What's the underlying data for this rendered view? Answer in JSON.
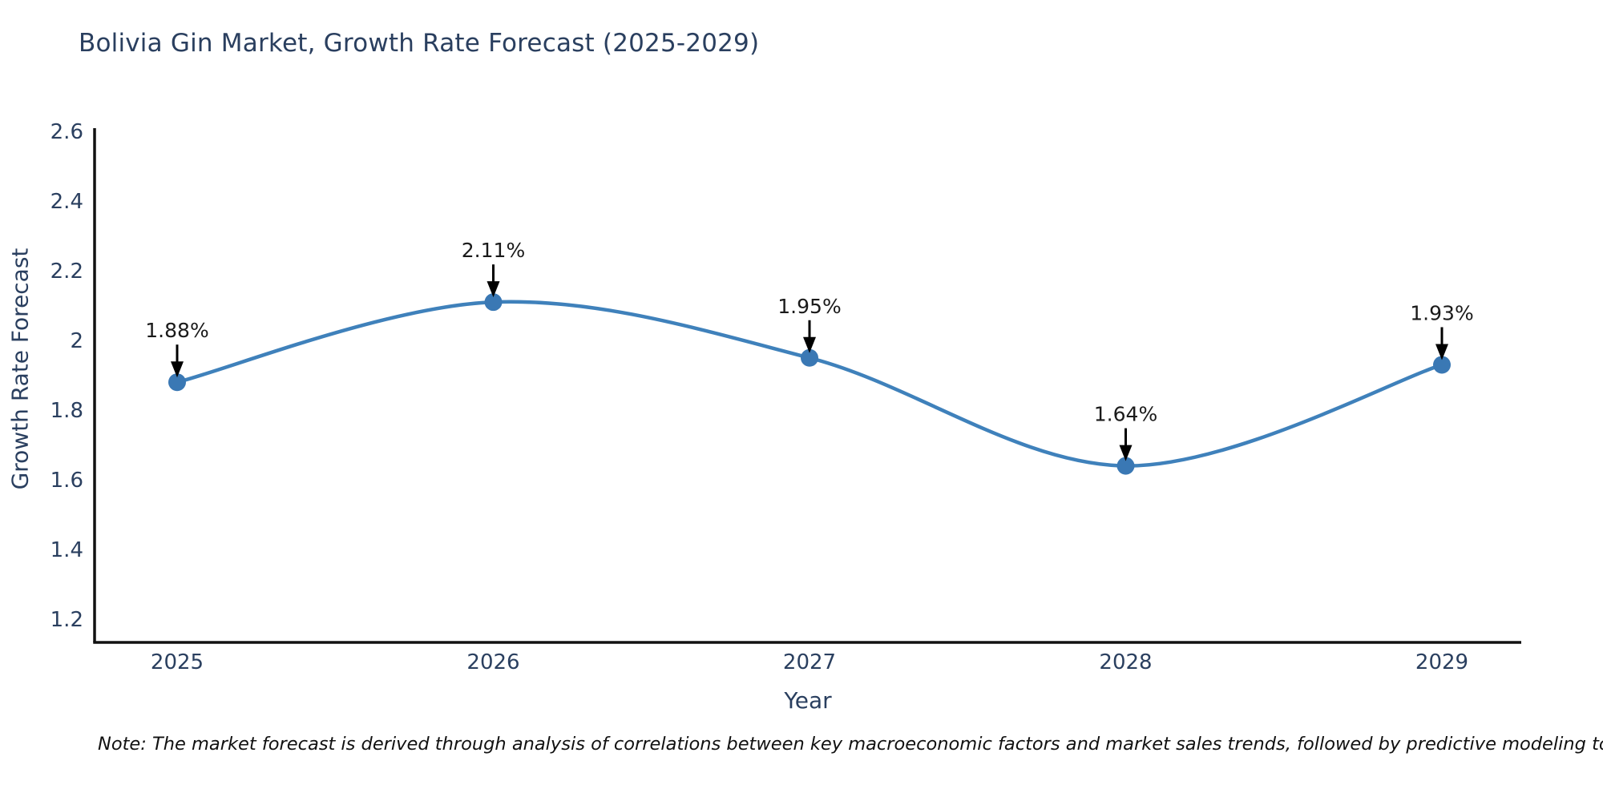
{
  "title": "Bolivia Gin Market, Growth Rate Forecast (2025-2029)",
  "chart_data": {
    "type": "line",
    "line_shape": "spline",
    "x": [
      2025,
      2026,
      2027,
      2028,
      2029
    ],
    "series": [
      {
        "name": "Growth Rate Forecast",
        "values": [
          1.88,
          2.11,
          1.95,
          1.64,
          1.93
        ]
      }
    ],
    "point_labels": [
      "1.88%",
      "2.11%",
      "1.95%",
      "1.64%",
      "1.93%"
    ],
    "xlabel": "Year",
    "ylabel": "Growth Rate Forecast",
    "xtick_labels": [
      "2025",
      "2026",
      "2027",
      "2028",
      "2029"
    ],
    "yticks": [
      2.6,
      2.4,
      2.2,
      2.0,
      1.8,
      1.6,
      1.4,
      1.2
    ],
    "ytick_labels": [
      "2.6",
      "2.4",
      "2.2",
      "2",
      "1.8",
      "1.6",
      "1.4",
      "1.2"
    ],
    "ylim": [
      1.13,
      2.6
    ],
    "grid": false,
    "legend": "none",
    "colors": {
      "line": "#3f81bb",
      "marker": "#3a78b4",
      "axis_line": "#111111",
      "axis_text": "#2a3f5f",
      "annotation_text": "#1a1a1a",
      "annotation_arrow": "#000000",
      "title_text": "#2a3f5f",
      "background": "#ffffff"
    }
  },
  "note": {
    "text": "Note: The market forecast is derived through analysis of correlations between key macroeconomic factors and market sales trends, followed by predictive modeling to project future sales"
  }
}
